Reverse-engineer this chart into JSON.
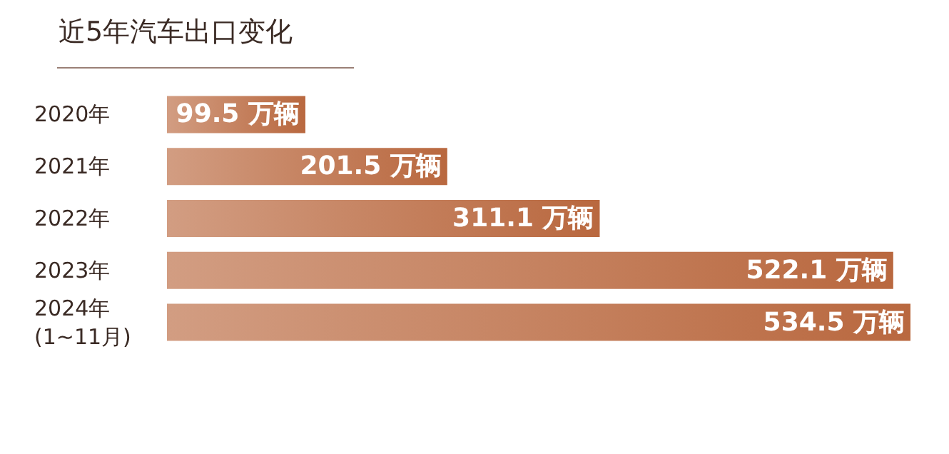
{
  "chart_data": {
    "type": "bar",
    "orientation": "horizontal",
    "title": "近5年汽车出口变化",
    "categories": [
      "2020年",
      "2021年",
      "2022年",
      "2023年",
      "2024年\n(1~11月)"
    ],
    "values": [
      99.5,
      201.5,
      311.1,
      522.1,
      534.5
    ],
    "value_labels": [
      "99.5 万辆",
      "201.5 万辆",
      "311.1 万辆",
      "522.1 万辆",
      "534.5 万辆"
    ],
    "color": "#b9683f"
  }
}
